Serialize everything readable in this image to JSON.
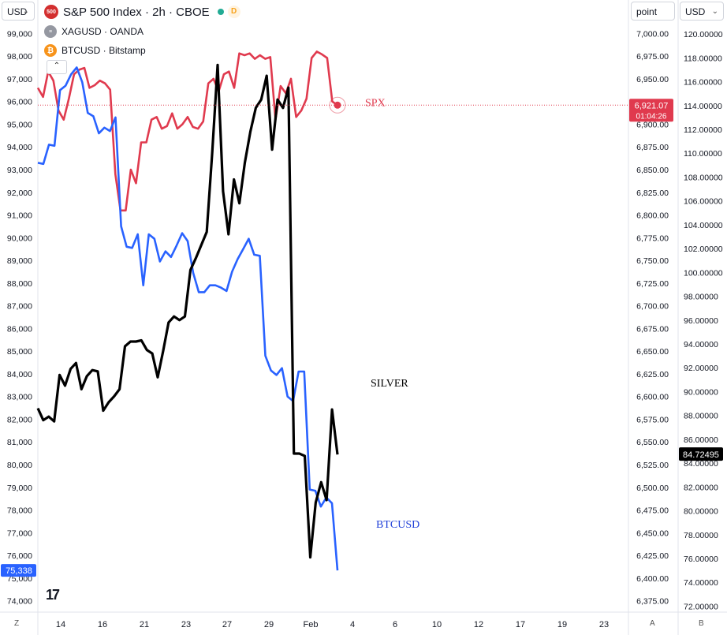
{
  "header": {
    "left_currency": "USD",
    "unit_selector": "point",
    "right_currency": "USD",
    "legend": [
      {
        "icon_text": "500",
        "label": "S&P 500 Index · 2h · CBOE",
        "color": "#d32f2f",
        "market_open": true,
        "badge": "D"
      },
      {
        "label": "XAGUSD · OANDA",
        "color": "#9598a1"
      },
      {
        "label": "BTCUSD · Bitstamp",
        "color": "#f7931a"
      }
    ]
  },
  "icons": {
    "collapse": "chevron-up-icon",
    "logo": "tradingview-logo"
  },
  "colors": {
    "spx": "#e03a4e",
    "btc": "#2962ff",
    "silver": "#000000"
  },
  "x_axis": {
    "labels": [
      "14",
      "16",
      "21",
      "23",
      "27",
      "29",
      "Feb",
      "4",
      "6",
      "10",
      "12",
      "17",
      "19",
      "23"
    ]
  },
  "left_axis": {
    "ticks": [
      "99,000",
      "98,000",
      "97,000",
      "96,000",
      "95,000",
      "94,000",
      "93,000",
      "92,000",
      "91,000",
      "90,000",
      "89,000",
      "88,000",
      "87,000",
      "86,000",
      "85,000",
      "84,000",
      "83,000",
      "82,000",
      "81,000",
      "80,000",
      "79,000",
      "78,000",
      "77,000",
      "76,000",
      "75,000",
      "74,000"
    ],
    "last_value": "75,338"
  },
  "mid_axis": {
    "ticks": [
      "7,000.00",
      "6,975.00",
      "6,950.00",
      "6,925.00",
      "6,900.00",
      "6,875.00",
      "6,850.00",
      "6,825.00",
      "6,800.00",
      "6,775.00",
      "6,750.00",
      "6,725.00",
      "6,700.00",
      "6,675.00",
      "6,650.00",
      "6,625.00",
      "6,600.00",
      "6,575.00",
      "6,550.00",
      "6,525.00",
      "6,500.00",
      "6,475.00",
      "6,450.00",
      "6,425.00",
      "6,400.00",
      "6,375.00"
    ],
    "last_value": "6,921.07",
    "countdown": "01:04:26"
  },
  "right_axis": {
    "ticks": [
      "120.00000",
      "118.00000",
      "116.00000",
      "114.00000",
      "112.00000",
      "110.00000",
      "108.00000",
      "106.00000",
      "104.00000",
      "102.00000",
      "100.00000",
      "98.00000",
      "96.00000",
      "94.00000",
      "92.00000",
      "90.00000",
      "88.00000",
      "86.00000",
      "84.00000",
      "82.00000",
      "80.00000",
      "78.00000",
      "76.00000",
      "74.00000",
      "72.00000"
    ],
    "last_value": "84.72495"
  },
  "annotations": {
    "spx": "SPX",
    "silver": "SILVER",
    "btc": "BTCUSD"
  },
  "corners": {
    "bottom_left": "Z",
    "bottom_mid": "A",
    "bottom_right": "B"
  },
  "chart_data": {
    "type": "line",
    "series": [
      {
        "name": "SPX",
        "axis": "mid",
        "color": "#e03a4e",
        "values": [
          6940,
          6930,
          6958,
          6948,
          6915,
          6905,
          6928,
          6955,
          6960,
          6962,
          6940,
          6943,
          6948,
          6945,
          6938,
          6845,
          6805,
          6805,
          6850,
          6835,
          6880,
          6880,
          6905,
          6908,
          6895,
          6898,
          6912,
          6895,
          6900,
          6908,
          6897,
          6895,
          6903,
          6945,
          6950,
          6936,
          6955,
          6958,
          6940,
          6978,
          6976,
          6978,
          6972,
          6976,
          6972,
          6974,
          6905,
          6942,
          6934,
          6950,
          6908,
          6915,
          6928,
          6973,
          6980,
          6977,
          6973,
          6925,
          6921
        ]
      },
      {
        "name": "BTCUSD",
        "axis": "left",
        "color": "#2962ff",
        "values": [
          93300,
          93250,
          94100,
          94050,
          96500,
          96700,
          97200,
          97500,
          96850,
          95500,
          95350,
          94600,
          94850,
          94700,
          95300,
          90500,
          89600,
          89550,
          90150,
          87900,
          90150,
          89950,
          88950,
          89400,
          89150,
          89650,
          90200,
          89850,
          88450,
          87600,
          87600,
          87900,
          87900,
          87800,
          87650,
          88500,
          89050,
          89500,
          89950,
          89250,
          89200,
          84800,
          84150,
          83950,
          84250,
          83000,
          82800,
          84100,
          84100,
          78900,
          78850,
          78150,
          78550,
          78300,
          75338
        ]
      },
      {
        "name": "SILVER",
        "axis": "right",
        "color": "#000000",
        "values": [
          88.6,
          87.6,
          87.9,
          87.5,
          91.4,
          90.5,
          91.9,
          92.4,
          90.2,
          91.3,
          91.8,
          91.7,
          88.4,
          89.1,
          89.6,
          90.2,
          93.8,
          94.2,
          94.2,
          94.3,
          93.5,
          93.2,
          91.2,
          93.4,
          95.8,
          96.3,
          96.0,
          96.3,
          100.2,
          101.2,
          102.3,
          103.4,
          110.0,
          117.4,
          106.8,
          103.2,
          107.8,
          105.8,
          109.2,
          111.8,
          113.8,
          114.5,
          116.5,
          110.3,
          114.5,
          113.8,
          115.5,
          84.8,
          84.8,
          84.6,
          76.1,
          80.7,
          82.4,
          80.9,
          88.5,
          84.72495
        ]
      }
    ],
    "left_ylim": [
      73500,
      99500
    ],
    "mid_ylim": [
      6362.5,
      7012.5
    ],
    "right_ylim": [
      71.5,
      121.0
    ],
    "grid": false,
    "legend": "top-left"
  }
}
